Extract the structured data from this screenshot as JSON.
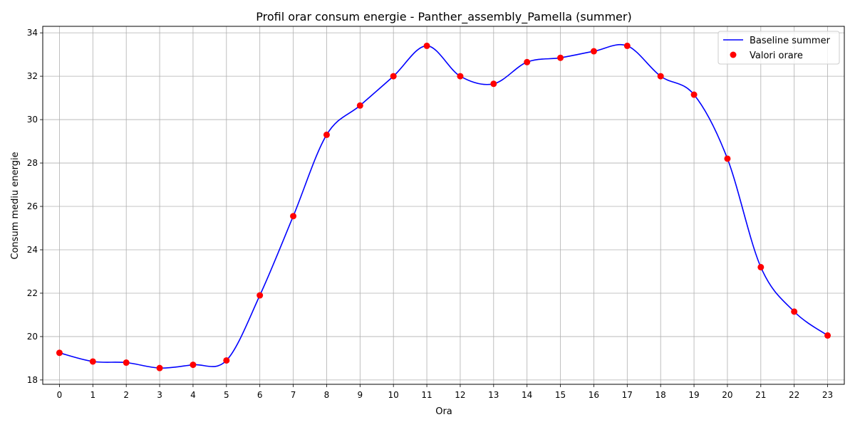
{
  "chart_data": {
    "type": "line",
    "title": "Profil orar consum energie - Panther_assembly_Pamella (summer)",
    "xlabel": "Ora",
    "ylabel": "Consum mediu energie",
    "x": [
      0,
      1,
      2,
      3,
      4,
      5,
      6,
      7,
      8,
      9,
      10,
      11,
      12,
      13,
      14,
      15,
      16,
      17,
      18,
      19,
      20,
      21,
      22,
      23
    ],
    "xlim": [
      -0.5,
      23.5
    ],
    "ylim": [
      17.8,
      34.3
    ],
    "yticks": [
      18,
      20,
      22,
      24,
      26,
      28,
      30,
      32,
      34
    ],
    "grid": true,
    "legend_position": "top-right",
    "series": [
      {
        "name": "Baseline summer",
        "kind": "line",
        "color": "#0000ff",
        "values": [
          19.25,
          18.85,
          18.8,
          18.55,
          18.7,
          18.9,
          21.9,
          25.55,
          29.3,
          30.65,
          32.0,
          33.4,
          32.0,
          31.65,
          32.65,
          32.85,
          33.15,
          33.4,
          32.0,
          31.15,
          28.2,
          23.2,
          21.15,
          20.05
        ]
      },
      {
        "name": "Valori orare",
        "kind": "scatter",
        "color": "#ff0000",
        "values": [
          19.25,
          18.85,
          18.8,
          18.55,
          18.7,
          18.9,
          21.9,
          25.55,
          29.3,
          30.65,
          32.0,
          33.4,
          32.0,
          31.65,
          32.65,
          32.85,
          33.15,
          33.4,
          32.0,
          31.15,
          28.2,
          23.2,
          21.15,
          20.05
        ]
      }
    ]
  }
}
